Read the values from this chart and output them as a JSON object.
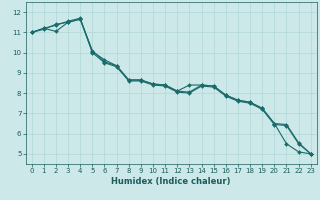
{
  "title": "",
  "xlabel": "Humidex (Indice chaleur)",
  "ylabel": "",
  "bg_color": "#cce8e8",
  "line_color": "#1a6b6b",
  "grid_color": "#b0d8d8",
  "x_values": [
    0,
    1,
    2,
    3,
    4,
    5,
    6,
    7,
    8,
    9,
    10,
    11,
    12,
    13,
    14,
    15,
    16,
    17,
    18,
    19,
    20,
    21,
    22,
    23
  ],
  "line1": [
    11.0,
    11.2,
    11.35,
    11.55,
    11.7,
    10.05,
    9.65,
    9.35,
    8.65,
    8.65,
    8.45,
    8.4,
    8.1,
    8.4,
    8.4,
    8.35,
    7.9,
    7.65,
    7.55,
    7.25,
    6.5,
    5.5,
    5.1,
    5.0
  ],
  "line2": [
    11.0,
    11.2,
    11.05,
    11.5,
    11.65,
    10.1,
    9.55,
    9.35,
    8.65,
    8.65,
    8.45,
    8.4,
    8.1,
    8.05,
    8.4,
    8.35,
    7.9,
    7.65,
    7.55,
    7.25,
    6.5,
    6.45,
    5.55,
    5.0
  ],
  "line3": [
    11.0,
    11.15,
    11.4,
    11.5,
    11.65,
    10.0,
    9.5,
    9.3,
    8.6,
    8.6,
    8.4,
    8.35,
    8.05,
    8.0,
    8.35,
    8.3,
    7.85,
    7.6,
    7.5,
    7.2,
    6.45,
    6.4,
    5.5,
    5.0
  ],
  "ylim": [
    4.5,
    12.5
  ],
  "xlim": [
    -0.5,
    23.5
  ],
  "yticks": [
    5,
    6,
    7,
    8,
    9,
    10,
    11,
    12
  ],
  "xticks": [
    0,
    1,
    2,
    3,
    4,
    5,
    6,
    7,
    8,
    9,
    10,
    11,
    12,
    13,
    14,
    15,
    16,
    17,
    18,
    19,
    20,
    21,
    22,
    23
  ],
  "marker": "D",
  "marker_size": 2.0,
  "linewidth": 0.8,
  "font_color": "#1a5c5c",
  "tick_fontsize": 5.0,
  "xlabel_fontsize": 6.0
}
